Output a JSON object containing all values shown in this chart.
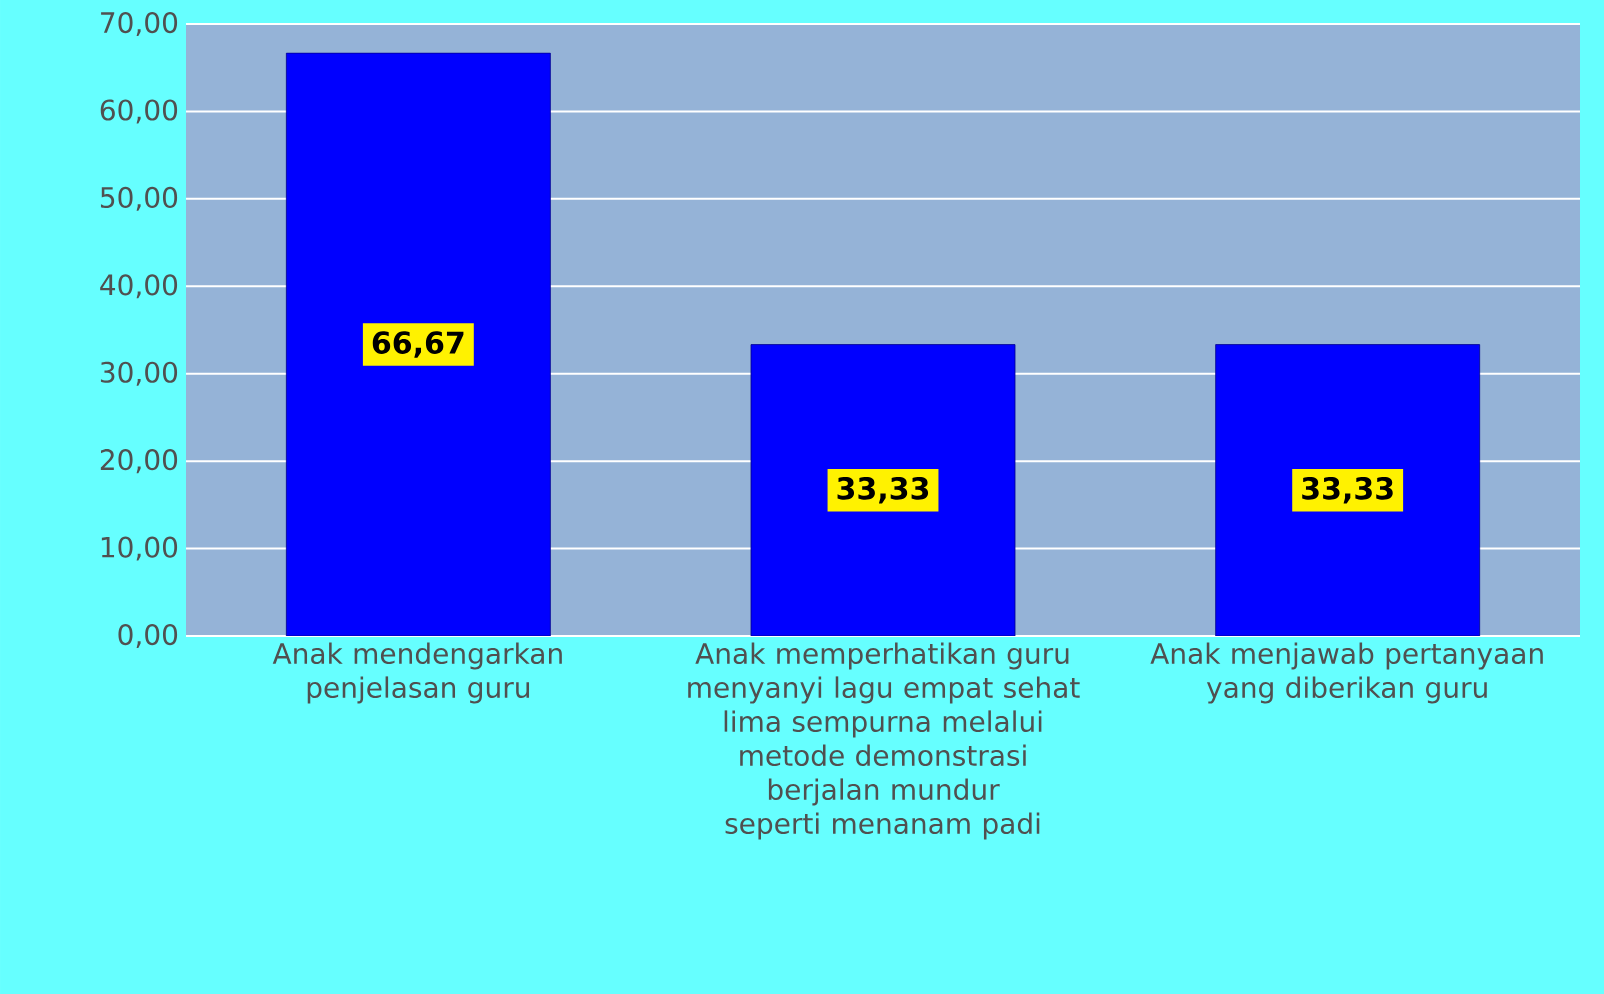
{
  "chart_data": {
    "type": "bar",
    "categories": [
      "Anak mendengarkan penjelasan guru",
      "Anak memperhatikan guru menyanyi lagu empat sehat lima sempurna melalui metode demonstrasi berjalan mundur seperti menanam padi",
      "Anak menjawab pertanyaan yang diberikan guru"
    ],
    "values": [
      66.67,
      33.33,
      33.33
    ],
    "value_labels": [
      "66,67",
      "33,33",
      "33,33"
    ],
    "color": "#0000ff",
    "ylim": [
      0,
      70
    ],
    "yticks": [
      {
        "value": 0,
        "label": "0,00"
      },
      {
        "value": 10,
        "label": "10,00"
      },
      {
        "value": 20,
        "label": "20,00"
      },
      {
        "value": 30,
        "label": "30,00"
      },
      {
        "value": 40,
        "label": "40,00"
      },
      {
        "value": 50,
        "label": "50,00"
      },
      {
        "value": 60,
        "label": "60,00"
      },
      {
        "value": 70,
        "label": "70,00"
      }
    ],
    "grid": "y"
  }
}
